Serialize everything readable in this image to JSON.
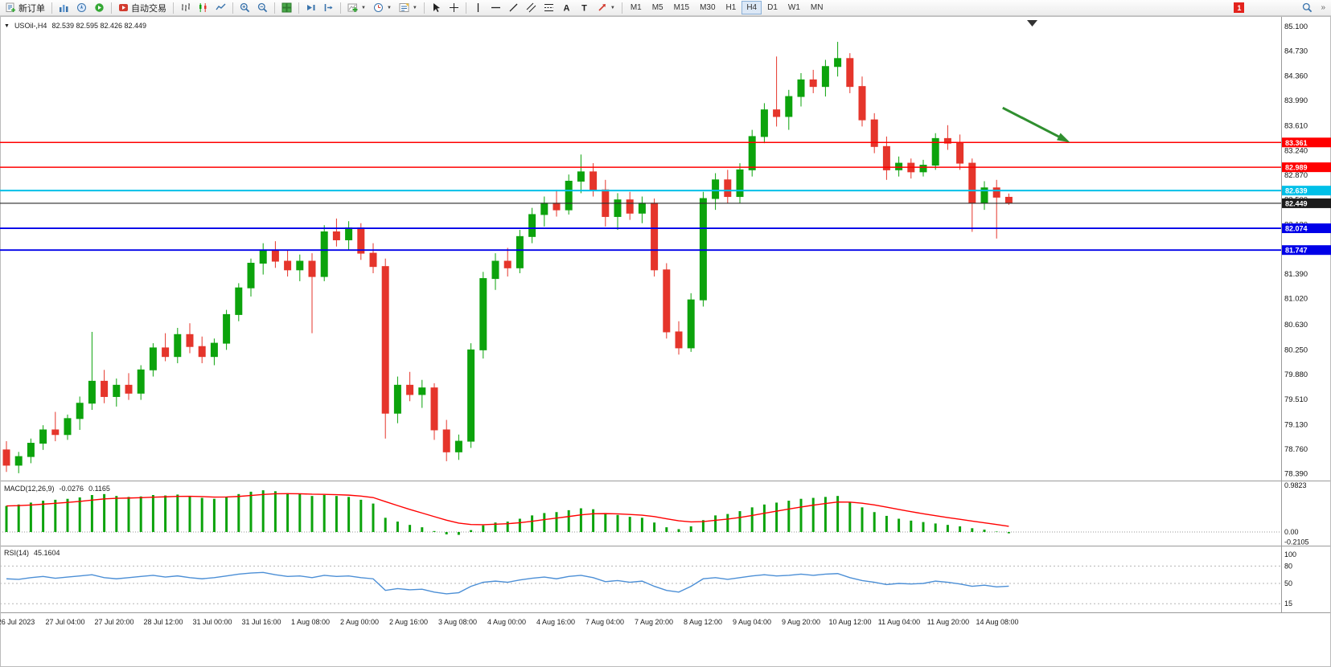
{
  "toolbar": {
    "new_order_label": "新订单",
    "autotrading_label": "自动交易",
    "timeframes": [
      "M1",
      "M5",
      "M15",
      "M30",
      "H1",
      "H4",
      "D1",
      "W1",
      "MN"
    ],
    "active_timeframe": "H4",
    "notification_badge": "1"
  },
  "chart_data": {
    "type": "candlestick",
    "symbol_label": "USOil-,H4",
    "ohlc_label": "82.539 82.595 82.426 82.449",
    "ohlc_display": {
      "open": "82.539",
      "high": "82.595",
      "low": "82.426",
      "close": "82.449"
    },
    "ylim": [
      78.29,
      85.16
    ],
    "colors": {
      "up": "#0CA30C",
      "down": "#E5352B",
      "signal": "#FF0000",
      "rsi": "#4C8FD6",
      "axis_text": "#111111",
      "current_price": "#2B2B2B",
      "arrow": "#2F8F2F"
    },
    "price_ticks": [
      "85.100",
      "84.730",
      "84.360",
      "83.990",
      "83.610",
      "83.240",
      "82.870",
      "82.500",
      "82.130",
      "81.760",
      "81.390",
      "81.020",
      "80.630",
      "80.250",
      "79.880",
      "79.510",
      "79.130",
      "78.760",
      "78.390"
    ],
    "x_labels": [
      "26 Jul 2023",
      "27 Jul 04:00",
      "27 Jul 20:00",
      "28 Jul 12:00",
      "31 Jul 00:00",
      "31 Jul 16:00",
      "1 Aug 08:00",
      "2 Aug 00:00",
      "2 Aug 16:00",
      "3 Aug 08:00",
      "4 Aug 00:00",
      "4 Aug 16:00",
      "7 Aug 04:00",
      "7 Aug 20:00",
      "8 Aug 12:00",
      "9 Aug 04:00",
      "9 Aug 20:00",
      "10 Aug 12:00",
      "11 Aug 04:00",
      "11 Aug 20:00",
      "14 Aug 08:00"
    ],
    "hlines": [
      {
        "price": 83.361,
        "label": "83.361",
        "color": "#FF0000",
        "width": 1.4
      },
      {
        "price": 82.989,
        "label": "82.989",
        "color": "#FF0000",
        "width": 1.4
      },
      {
        "price": 82.639,
        "label": "82.639",
        "color": "#00C0E8",
        "width": 2
      },
      {
        "price": 82.074,
        "label": "82.074",
        "color": "#0000E8",
        "width": 1.8
      },
      {
        "price": 81.747,
        "label": "81.747",
        "color": "#0000E8",
        "width": 1.8
      }
    ],
    "current_price": {
      "value": 82.449,
      "label": "82.449"
    },
    "arrow": {
      "from": {
        "bar": 81.5,
        "price": 83.88
      },
      "to": {
        "bar": 86.6,
        "price": 83.4
      }
    },
    "candles": [
      [
        78.75,
        78.88,
        78.42,
        78.52
      ],
      [
        78.52,
        78.72,
        78.4,
        78.65
      ],
      [
        78.65,
        78.92,
        78.55,
        78.85
      ],
      [
        78.85,
        79.12,
        78.75,
        79.05
      ],
      [
        79.05,
        79.32,
        78.88,
        78.98
      ],
      [
        78.98,
        79.28,
        78.9,
        79.22
      ],
      [
        79.22,
        79.55,
        79.05,
        79.45
      ],
      [
        79.45,
        80.52,
        79.35,
        79.78
      ],
      [
        79.78,
        79.95,
        79.45,
        79.55
      ],
      [
        79.55,
        79.82,
        79.4,
        79.72
      ],
      [
        79.72,
        79.9,
        79.5,
        79.6
      ],
      [
        79.6,
        80.02,
        79.5,
        79.95
      ],
      [
        79.95,
        80.35,
        79.85,
        80.28
      ],
      [
        80.28,
        80.5,
        80.08,
        80.15
      ],
      [
        80.15,
        80.58,
        80.05,
        80.48
      ],
      [
        80.48,
        80.65,
        80.2,
        80.3
      ],
      [
        80.3,
        80.45,
        80.05,
        80.15
      ],
      [
        80.15,
        80.42,
        80.02,
        80.35
      ],
      [
        80.35,
        80.85,
        80.25,
        80.78
      ],
      [
        80.78,
        81.25,
        80.68,
        81.18
      ],
      [
        81.18,
        81.62,
        81.05,
        81.55
      ],
      [
        81.55,
        81.85,
        81.38,
        81.75
      ],
      [
        81.75,
        81.88,
        81.48,
        81.58
      ],
      [
        81.58,
        81.75,
        81.35,
        81.45
      ],
      [
        81.45,
        81.68,
        81.28,
        81.58
      ],
      [
        81.58,
        81.7,
        80.5,
        81.35
      ],
      [
        81.35,
        82.12,
        81.28,
        82.02
      ],
      [
        82.02,
        82.22,
        81.8,
        81.9
      ],
      [
        81.9,
        82.18,
        81.75,
        82.08
      ],
      [
        82.08,
        82.15,
        81.6,
        81.7
      ],
      [
        81.7,
        81.85,
        81.4,
        81.5
      ],
      [
        81.5,
        81.62,
        78.92,
        79.3
      ],
      [
        79.3,
        79.85,
        79.15,
        79.72
      ],
      [
        79.72,
        79.92,
        79.48,
        79.58
      ],
      [
        79.58,
        79.8,
        79.38,
        79.68
      ],
      [
        79.68,
        79.75,
        78.9,
        79.05
      ],
      [
        79.05,
        79.2,
        78.58,
        78.72
      ],
      [
        78.72,
        78.98,
        78.6,
        78.88
      ],
      [
        78.88,
        80.35,
        78.78,
        80.25
      ],
      [
        80.25,
        81.42,
        80.12,
        81.32
      ],
      [
        81.32,
        81.7,
        81.15,
        81.58
      ],
      [
        81.58,
        81.78,
        81.35,
        81.48
      ],
      [
        81.48,
        82.05,
        81.4,
        81.95
      ],
      [
        81.95,
        82.38,
        81.85,
        82.28
      ],
      [
        82.28,
        82.55,
        82.1,
        82.45
      ],
      [
        82.45,
        82.65,
        82.25,
        82.35
      ],
      [
        82.35,
        82.88,
        82.28,
        82.78
      ],
      [
        82.78,
        83.18,
        82.6,
        82.92
      ],
      [
        82.92,
        83.05,
        82.55,
        82.65
      ],
      [
        82.65,
        82.8,
        82.1,
        82.25
      ],
      [
        82.25,
        82.6,
        82.05,
        82.5
      ],
      [
        82.5,
        82.62,
        82.2,
        82.3
      ],
      [
        82.3,
        82.55,
        82.15,
        82.45
      ],
      [
        82.45,
        82.52,
        81.35,
        81.45
      ],
      [
        81.45,
        81.55,
        80.42,
        80.52
      ],
      [
        80.52,
        80.68,
        80.18,
        80.28
      ],
      [
        80.28,
        81.1,
        80.22,
        81.0
      ],
      [
        81.0,
        82.62,
        80.9,
        82.52
      ],
      [
        82.52,
        82.9,
        82.35,
        82.8
      ],
      [
        82.8,
        82.95,
        82.45,
        82.55
      ],
      [
        82.55,
        83.05,
        82.45,
        82.95
      ],
      [
        82.95,
        83.55,
        82.85,
        83.45
      ],
      [
        83.45,
        83.95,
        83.35,
        83.85
      ],
      [
        83.85,
        84.65,
        83.6,
        83.75
      ],
      [
        83.75,
        84.15,
        83.55,
        84.05
      ],
      [
        84.05,
        84.4,
        83.9,
        84.3
      ],
      [
        84.3,
        84.45,
        84.1,
        84.2
      ],
      [
        84.2,
        84.6,
        84.05,
        84.5
      ],
      [
        84.5,
        84.87,
        84.35,
        84.62
      ],
      [
        84.62,
        84.7,
        84.1,
        84.2
      ],
      [
        84.2,
        84.35,
        83.6,
        83.7
      ],
      [
        83.7,
        83.8,
        83.2,
        83.3
      ],
      [
        83.3,
        83.45,
        82.8,
        82.95
      ],
      [
        82.95,
        83.15,
        82.85,
        83.05
      ],
      [
        83.05,
        83.12,
        82.82,
        82.92
      ],
      [
        82.92,
        83.1,
        82.85,
        83.02
      ],
      [
        83.02,
        83.5,
        82.95,
        83.42
      ],
      [
        83.42,
        83.62,
        83.25,
        83.35
      ],
      [
        83.35,
        83.48,
        82.95,
        83.05
      ],
      [
        83.05,
        83.12,
        82.02,
        82.45
      ],
      [
        82.45,
        82.78,
        82.35,
        82.68
      ],
      [
        82.68,
        82.8,
        81.92,
        82.54
      ],
      [
        82.539,
        82.595,
        82.426,
        82.449
      ]
    ],
    "macd": {
      "label": "MACD(12,26,9)",
      "value": "-0.0276",
      "signal_value": "0.1165",
      "ylim": [
        -0.271,
        1.051
      ],
      "axis": [
        {
          "v": 0.9823,
          "label": "0.9823"
        },
        {
          "v": 0,
          "label": "0.00"
        },
        {
          "v": -0.2105,
          "label": "-0.2105"
        }
      ],
      "histogram": [
        0.55,
        0.58,
        0.62,
        0.66,
        0.68,
        0.7,
        0.73,
        0.78,
        0.8,
        0.76,
        0.74,
        0.75,
        0.78,
        0.77,
        0.79,
        0.76,
        0.72,
        0.7,
        0.74,
        0.8,
        0.85,
        0.88,
        0.86,
        0.82,
        0.8,
        0.76,
        0.78,
        0.76,
        0.74,
        0.68,
        0.6,
        0.3,
        0.22,
        0.15,
        0.1,
        0.02,
        -0.05,
        -0.06,
        0.04,
        0.14,
        0.2,
        0.22,
        0.28,
        0.35,
        0.4,
        0.42,
        0.46,
        0.5,
        0.48,
        0.4,
        0.36,
        0.32,
        0.3,
        0.2,
        0.1,
        0.06,
        0.12,
        0.25,
        0.35,
        0.38,
        0.44,
        0.52,
        0.58,
        0.62,
        0.66,
        0.7,
        0.72,
        0.74,
        0.76,
        0.62,
        0.52,
        0.42,
        0.34,
        0.28,
        0.24,
        0.21,
        0.18,
        0.15,
        0.12,
        0.08,
        0.05,
        0.01,
        -0.0276
      ]
    },
    "rsi": {
      "label": "RSI(14)",
      "value": "45.1604",
      "levels": [
        80,
        50,
        15
      ],
      "axis": [
        {
          "v": 100,
          "label": "100"
        },
        {
          "v": 80,
          "label": "80"
        },
        {
          "v": 50,
          "label": "50"
        },
        {
          "v": 15,
          "label": "15"
        }
      ],
      "values": [
        58,
        57,
        60,
        62,
        59,
        61,
        63,
        65,
        60,
        58,
        60,
        62,
        64,
        61,
        63,
        60,
        58,
        60,
        63,
        66,
        68,
        69,
        65,
        62,
        63,
        60,
        64,
        62,
        63,
        60,
        58,
        38,
        41,
        39,
        40,
        35,
        32,
        34,
        45,
        52,
        54,
        52,
        56,
        59,
        61,
        58,
        62,
        64,
        60,
        53,
        55,
        52,
        54,
        45,
        38,
        35,
        45,
        58,
        60,
        57,
        60,
        63,
        65,
        63,
        64,
        66,
        64,
        66,
        67,
        60,
        55,
        52,
        48,
        50,
        49,
        50,
        54,
        52,
        49,
        45,
        47,
        44,
        45.16
      ]
    }
  }
}
